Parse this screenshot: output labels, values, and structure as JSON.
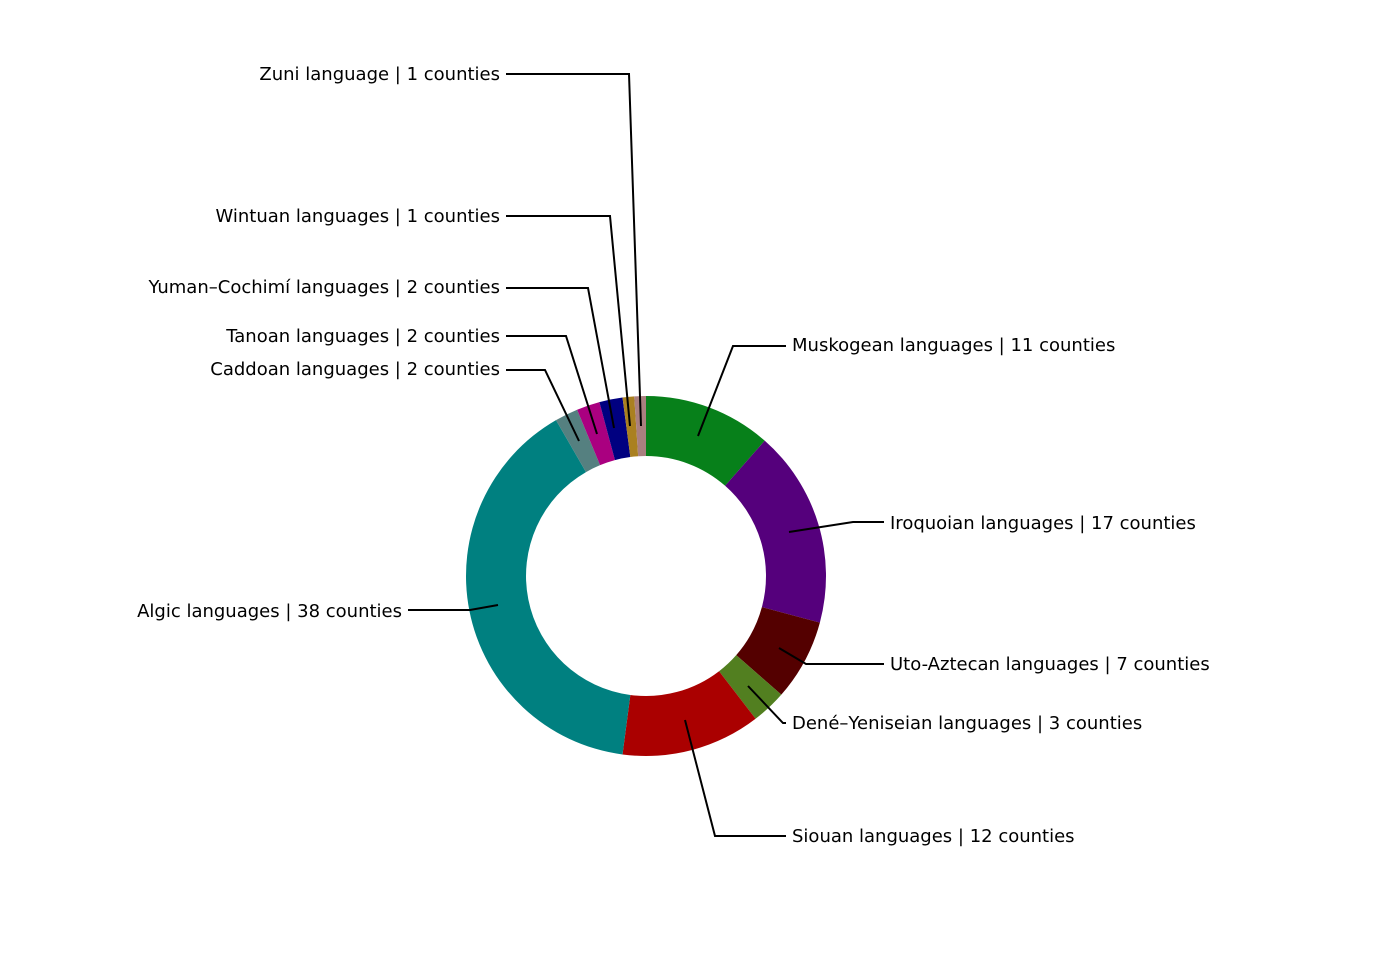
{
  "chart_data": {
    "type": "pie",
    "style": "donut",
    "start": "top",
    "direction": "clockwise",
    "legend": "none",
    "grid": false,
    "slices": [
      {
        "name": "Muskogean languages",
        "value": 11,
        "label": "Muskogean languages | 11 counties",
        "color": "#07801a"
      },
      {
        "name": "Iroquoian languages",
        "value": 17,
        "label": "Iroquoian languages | 17 counties",
        "color": "#55007c"
      },
      {
        "name": "Uto-Aztecan languages",
        "value": 7,
        "label": "Uto-Aztecan languages | 7 counties",
        "color": "#540000"
      },
      {
        "name": "Dené–Yeniseian languages",
        "value": 3,
        "label": "Dené–Yeniseian languages | 3 counties",
        "color": "#527f20"
      },
      {
        "name": "Siouan languages",
        "value": 12,
        "label": "Siouan languages | 12 counties",
        "color": "#aa0000"
      },
      {
        "name": "Algic languages",
        "value": 38,
        "label": "Algic languages | 38 counties",
        "color": "#008080"
      },
      {
        "name": "Caddoan languages",
        "value": 2,
        "label": "Caddoan languages | 2 counties",
        "color": "#558080"
      },
      {
        "name": "Tanoan languages",
        "value": 2,
        "label": "Tanoan languages | 2 counties",
        "color": "#aa0080"
      },
      {
        "name": "Yuman–Cochimí languages",
        "value": 2,
        "label": "Yuman–Cochimí languages | 2 counties",
        "color": "#000080"
      },
      {
        "name": "Wintuan languages",
        "value": 1,
        "label": "Wintuan languages | 1 counties",
        "color": "#aa8020"
      },
      {
        "name": "Zuni language",
        "value": 1,
        "label": "Zuni language | 1 counties",
        "color": "#aa8080"
      }
    ]
  }
}
